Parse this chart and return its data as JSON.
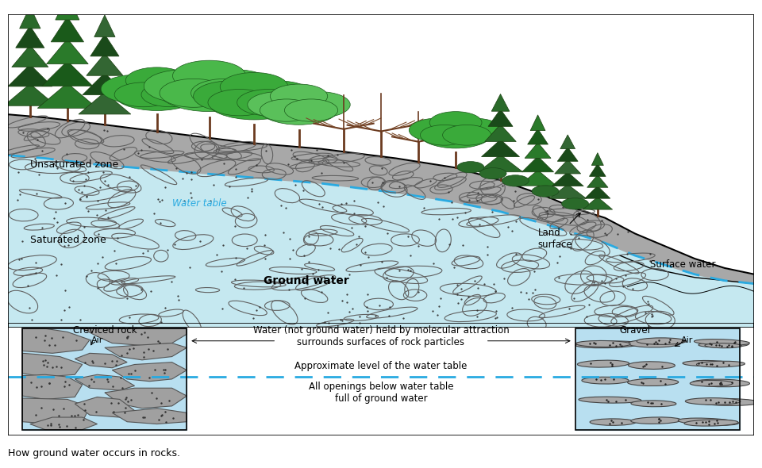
{
  "bg_color": "#ffffff",
  "ground_gray": "#a8a8a8",
  "saturated_blue": "#c5e8f0",
  "surface_water_blue": "#b8e0f0",
  "water_table_color": "#29aae1",
  "rock_gray": "#a0a0a0",
  "rock_edge": "#555555",
  "crevice_blue": "#b8dff0",
  "gravel_gray": "#a8a8a8",
  "labels": {
    "unsaturated_zone": "Unsaturated zone",
    "water_table": "Water table",
    "saturated_zone": "Saturated zone",
    "ground_water": "Ground water",
    "land_surface": "Land\nsurface",
    "surface_water": "Surface water",
    "creviced_rock": "Creviced rock",
    "air_left": "Air",
    "gravel": "Gravel",
    "air_right": "Air",
    "molecular_attraction": "Water (not ground water) held by molecular attraction\nsurrounds surfaces of rock particles",
    "water_table_approx": "Approximate level of the water table",
    "below_water_table": "All openings below water table\nfull of ground water",
    "caption": "How ground water occurs in rocks."
  }
}
